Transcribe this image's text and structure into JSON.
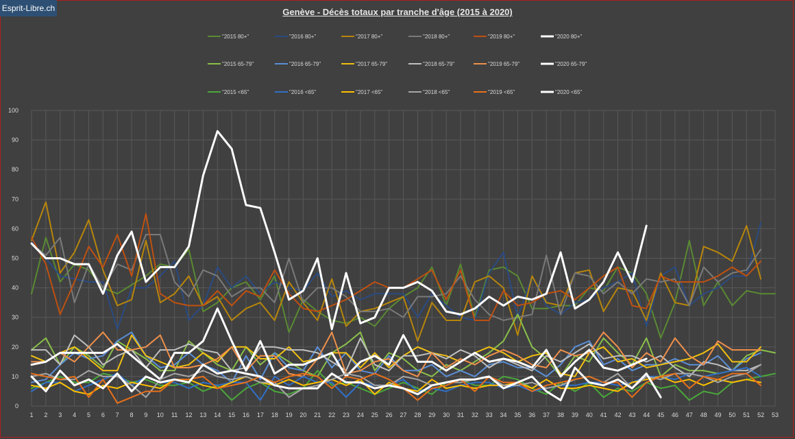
{
  "brand": "Esprit-Libre.ch",
  "chart_data": {
    "type": "line",
    "title": "Genève - Décès totaux par tranche d'âge (2015  à 2020)",
    "xlabel": "",
    "ylabel": "",
    "x": [
      1,
      2,
      3,
      4,
      5,
      6,
      7,
      8,
      9,
      10,
      11,
      12,
      13,
      14,
      15,
      16,
      17,
      18,
      19,
      20,
      21,
      22,
      23,
      24,
      25,
      26,
      27,
      28,
      29,
      30,
      31,
      32,
      33,
      34,
      35,
      36,
      37,
      38,
      39,
      40,
      41,
      42,
      43,
      44,
      45,
      46,
      47,
      48,
      49,
      50,
      51,
      52,
      53
    ],
    "ylim": [
      0,
      100
    ],
    "yticks": [
      0,
      10,
      20,
      30,
      40,
      50,
      60,
      70,
      80,
      90,
      100
    ],
    "grid": true,
    "legend_position": "top",
    "series": [
      {
        "name": "\"2015 80+\"",
        "color": "#5a8a32",
        "width": 2,
        "values": [
          38,
          57,
          42,
          48,
          46,
          40,
          38,
          41,
          44,
          48,
          47,
          53,
          32,
          35,
          40,
          42,
          36,
          44,
          25,
          36,
          32,
          29,
          28,
          30,
          27,
          33,
          37,
          40,
          47,
          34,
          48,
          30,
          46,
          47,
          44,
          33,
          33,
          34,
          34,
          40,
          39,
          47,
          45,
          38,
          23,
          35,
          56,
          34,
          42,
          34,
          39,
          38,
          38
        ]
      },
      {
        "name": "\"2016 80+\"",
        "color": "#2a4b82",
        "width": 2,
        "values": [
          56,
          50,
          44,
          43,
          42,
          42,
          26,
          40,
          40,
          44,
          49,
          29,
          34,
          47,
          40,
          44,
          38,
          42,
          40,
          39,
          45,
          37,
          39,
          36,
          38,
          38,
          38,
          30,
          38,
          34,
          30,
          29,
          45,
          52,
          30,
          44,
          34,
          31,
          35,
          36,
          40,
          42,
          45,
          27,
          44,
          47,
          34,
          38,
          40,
          44,
          44,
          62,
          null
        ]
      },
      {
        "name": "\"2017 80+\"",
        "color": "#b8860b",
        "width": 2,
        "values": [
          56,
          69,
          45,
          52,
          63,
          46,
          34,
          36,
          56,
          35,
          38,
          44,
          34,
          37,
          29,
          33,
          35,
          29,
          42,
          35,
          29,
          43,
          27,
          32,
          33,
          35,
          37,
          22,
          35,
          29,
          29,
          42,
          44,
          40,
          24,
          44,
          35,
          34,
          45,
          46,
          32,
          40,
          39,
          29,
          45,
          35,
          34,
          54,
          52,
          49,
          61,
          43,
          null
        ]
      },
      {
        "name": "\"2018 80+\"",
        "color": "#7a7a7a",
        "width": 2,
        "values": [
          55,
          51,
          57,
          35,
          48,
          40,
          48,
          46,
          58,
          58,
          42,
          37,
          46,
          44,
          37,
          40,
          40,
          35,
          50,
          35,
          40,
          40,
          37,
          32,
          32,
          33,
          30,
          37,
          37,
          38,
          44,
          36,
          31,
          29,
          30,
          31,
          51,
          31,
          45,
          44,
          38,
          42,
          38,
          43,
          42,
          43,
          34,
          47,
          42,
          45,
          46,
          53,
          null
        ]
      },
      {
        "name": "\"2019 80+\"",
        "color": "#c05010",
        "width": 2,
        "values": [
          57,
          48,
          31,
          42,
          54,
          47,
          58,
          44,
          65,
          38,
          35,
          34,
          34,
          39,
          34,
          39,
          37,
          46,
          38,
          33,
          32,
          34,
          36,
          39,
          42,
          40,
          40,
          43,
          46,
          36,
          46,
          29,
          29,
          39,
          34,
          35,
          38,
          39,
          36,
          40,
          44,
          47,
          34,
          33,
          44,
          42,
          42,
          42,
          44,
          47,
          44,
          49,
          null
        ]
      },
      {
        "name": "\"2020 80+\"",
        "color": "#ffffff",
        "width": 3,
        "values": [
          55,
          50,
          50,
          48,
          48,
          38,
          51,
          59,
          42,
          47,
          47,
          54,
          78,
          93,
          87,
          68,
          67,
          52,
          36,
          39,
          50,
          26,
          45,
          28,
          30,
          40,
          40,
          42,
          39,
          32,
          31,
          33,
          37,
          34,
          37,
          36,
          38,
          52,
          33,
          36,
          42,
          52,
          42,
          61,
          null,
          null,
          null,
          null,
          null,
          null,
          null,
          null,
          null
        ]
      },
      {
        "name": "\"2015 65-79\"",
        "color": "#8ac04a",
        "width": 2,
        "values": [
          19,
          23,
          14,
          20,
          17,
          13,
          22,
          19,
          16,
          12,
          12,
          22,
          18,
          14,
          12,
          20,
          14,
          18,
          15,
          12,
          10,
          18,
          21,
          25,
          12,
          18,
          16,
          12,
          10,
          14,
          12,
          15,
          18,
          22,
          31,
          20,
          16,
          10,
          17,
          15,
          23,
          18,
          14,
          23,
          10,
          14,
          12,
          12,
          11,
          12,
          17,
          19,
          18
        ]
      },
      {
        "name": "\"2016 65-79\"",
        "color": "#5b8fd8",
        "width": 2,
        "values": [
          8,
          9,
          14,
          18,
          16,
          17,
          22,
          25,
          17,
          13,
          14,
          18,
          14,
          12,
          8,
          17,
          9,
          18,
          13,
          12,
          20,
          13,
          18,
          12,
          11,
          17,
          12,
          12,
          14,
          10,
          12,
          10,
          14,
          15,
          13,
          13,
          10,
          14,
          20,
          22,
          14,
          16,
          12,
          14,
          14,
          16,
          14,
          14,
          17,
          12,
          16,
          18,
          null
        ]
      },
      {
        "name": "\"2017 65-79\"",
        "color": "#f2c010",
        "width": 2,
        "values": [
          17,
          15,
          18,
          20,
          16,
          12,
          12,
          24,
          17,
          15,
          13,
          14,
          18,
          15,
          20,
          20,
          16,
          16,
          20,
          15,
          16,
          18,
          18,
          13,
          18,
          13,
          17,
          20,
          18,
          17,
          15,
          18,
          20,
          18,
          15,
          17,
          18,
          11,
          10,
          18,
          20,
          15,
          16,
          13,
          14,
          15,
          16,
          18,
          21,
          15,
          15,
          20,
          null
        ]
      },
      {
        "name": "\"2018 65-79\"",
        "color": "#c0c0c0",
        "width": 2,
        "values": [
          19,
          19,
          14,
          24,
          20,
          14,
          17,
          19,
          13,
          19,
          19,
          21,
          19,
          18,
          12,
          13,
          20,
          20,
          19,
          19,
          18,
          15,
          12,
          23,
          14,
          12,
          17,
          17,
          18,
          16,
          19,
          17,
          13,
          16,
          14,
          12,
          17,
          15,
          18,
          21,
          16,
          17,
          17,
          15,
          17,
          13,
          10,
          15,
          14,
          12,
          12,
          14,
          null
        ]
      },
      {
        "name": "\"2019 65-79\"",
        "color": "#f0904a",
        "width": 2,
        "values": [
          15,
          15,
          18,
          15,
          20,
          25,
          19,
          19,
          20,
          24,
          13,
          13,
          14,
          16,
          20,
          12,
          17,
          17,
          11,
          10,
          16,
          25,
          11,
          12,
          15,
          16,
          12,
          10,
          18,
          13,
          16,
          14,
          17,
          19,
          17,
          14,
          13,
          19,
          17,
          18,
          25,
          20,
          13,
          18,
          15,
          23,
          17,
          14,
          22,
          19,
          19,
          19,
          null
        ]
      },
      {
        "name": "\"2020 65-79\"",
        "color": "#ffffff",
        "width": 3,
        "values": [
          14,
          15,
          18,
          18,
          18,
          18,
          21,
          17,
          13,
          9,
          18,
          18,
          22,
          33,
          22,
          12,
          22,
          11,
          14,
          14,
          16,
          18,
          10,
          15,
          17,
          14,
          24,
          15,
          15,
          12,
          15,
          18,
          15,
          16,
          15,
          13,
          19,
          10,
          15,
          19,
          13,
          12,
          14,
          16,
          null,
          null,
          null,
          null,
          null,
          null,
          null,
          null,
          null
        ]
      },
      {
        "name": "\"2015 <65\"",
        "color": "#4aa83a",
        "width": 2,
        "values": [
          6,
          8,
          10,
          8,
          8,
          11,
          10,
          8,
          9,
          7,
          7,
          8,
          5,
          7,
          2,
          6,
          8,
          5,
          4,
          6,
          12,
          7,
          8,
          6,
          4,
          6,
          8,
          6,
          4,
          8,
          9,
          7,
          7,
          10,
          9,
          6,
          4,
          8,
          5,
          8,
          3,
          6,
          5,
          8,
          6,
          7,
          2,
          5,
          4,
          8,
          9,
          10,
          11
        ]
      },
      {
        "name": "\"2016 <65\"",
        "color": "#3070c8",
        "width": 2,
        "values": [
          5,
          8,
          8,
          5,
          7,
          9,
          11,
          7,
          10,
          8,
          8,
          6,
          8,
          7,
          8,
          8,
          2,
          10,
          7,
          10,
          8,
          8,
          3,
          8,
          7,
          7,
          9,
          5,
          6,
          5,
          7,
          8,
          8,
          6,
          7,
          5,
          6,
          7,
          7,
          8,
          8,
          7,
          8,
          10,
          10,
          9,
          11,
          10,
          11,
          12,
          13,
          10,
          null
        ]
      },
      {
        "name": "\"2017 <65\"",
        "color": "#ffc000",
        "width": 2,
        "values": [
          7,
          6,
          8,
          5,
          4,
          7,
          6,
          8,
          7,
          6,
          9,
          9,
          7,
          6,
          8,
          10,
          8,
          7,
          9,
          7,
          8,
          9,
          7,
          9,
          4,
          8,
          6,
          5,
          9,
          6,
          7,
          6,
          7,
          7,
          8,
          6,
          9,
          6,
          6,
          7,
          6,
          5,
          8,
          9,
          10,
          8,
          9,
          7,
          9,
          8,
          9,
          8,
          null
        ]
      },
      {
        "name": "\"2018 <65\"",
        "color": "#a6a6a6",
        "width": 2,
        "values": [
          10,
          11,
          9,
          9,
          12,
          10,
          10,
          7,
          3,
          9,
          11,
          10,
          12,
          10,
          9,
          10,
          8,
          8,
          3,
          6,
          7,
          9,
          11,
          10,
          7,
          7,
          10,
          9,
          7,
          8,
          8,
          9,
          10,
          7,
          7,
          8,
          6,
          7,
          9,
          10,
          8,
          11,
          6,
          10,
          9,
          11,
          11,
          10,
          8,
          10,
          11,
          14,
          null
        ]
      },
      {
        "name": "\"2019 <65\"",
        "color": "#e8701a",
        "width": 2,
        "values": [
          11,
          10,
          9,
          10,
          3,
          9,
          1,
          3,
          5,
          5,
          9,
          9,
          10,
          6,
          7,
          8,
          10,
          8,
          10,
          11,
          10,
          6,
          10,
          9,
          11,
          9,
          6,
          2,
          6,
          7,
          9,
          5,
          10,
          8,
          8,
          5,
          7,
          8,
          9,
          10,
          8,
          8,
          3,
          8,
          10,
          11,
          6,
          10,
          9,
          11,
          11,
          7,
          null
        ]
      },
      {
        "name": "\"2020 <65\"",
        "color": "#ffffff",
        "width": 3,
        "values": [
          10,
          5,
          12,
          7,
          9,
          6,
          11,
          5,
          10,
          8,
          9,
          8,
          14,
          11,
          12,
          11,
          10,
          7,
          6,
          6,
          6,
          11,
          8,
          8,
          6,
          7,
          6,
          4,
          7,
          8,
          9,
          9,
          10,
          6,
          8,
          10,
          5,
          2,
          13,
          8,
          7,
          9,
          6,
          11,
          3,
          null,
          null,
          null,
          null,
          null,
          null,
          null,
          null
        ]
      }
    ]
  }
}
